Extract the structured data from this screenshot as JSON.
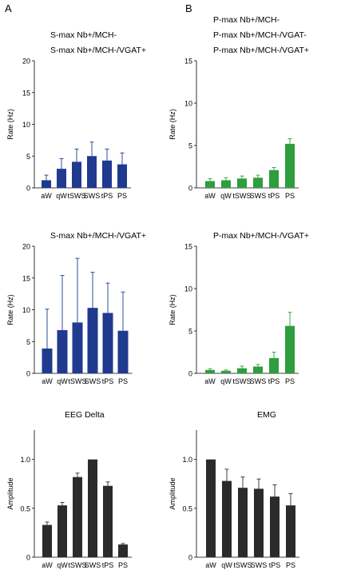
{
  "panel_labels": [
    "A",
    "B"
  ],
  "chart_data": [
    {
      "type": "bar",
      "title_lines": [
        "S-max Nb+/MCH-",
        "S-max Nb+/MCH-/VGAT+"
      ],
      "categories": [
        "aW",
        "qW",
        "tSWS",
        "SWS",
        "tPS",
        "PS"
      ],
      "values": [
        1.2,
        3.0,
        4.1,
        5.0,
        4.3,
        3.7
      ],
      "errors": [
        0.8,
        1.6,
        2.0,
        2.2,
        1.8,
        1.8
      ],
      "ylabel": "Rate (Hz)",
      "ylim": [
        0,
        20
      ],
      "yticks": [
        0,
        5,
        10,
        15,
        20
      ],
      "color": "#1f3a8f"
    },
    {
      "type": "bar",
      "title_lines": [
        "P-max Nb+/MCH-",
        "P-max Nb+/MCH-/VGAT-",
        "P-max Nb+/MCH-/VGAT+"
      ],
      "categories": [
        "aW",
        "qW",
        "tSWS",
        "SWS",
        "tPS",
        "PS"
      ],
      "values": [
        0.8,
        0.9,
        1.1,
        1.2,
        2.1,
        5.2
      ],
      "errors": [
        0.3,
        0.3,
        0.3,
        0.3,
        0.3,
        0.6
      ],
      "ylabel": "Rate (Hz)",
      "ylim": [
        0,
        15
      ],
      "yticks": [
        0,
        5,
        10,
        15
      ],
      "color": "#2e9e3e"
    },
    {
      "type": "bar",
      "title_lines": [
        "S-max Nb+/MCH-/VGAT+"
      ],
      "categories": [
        "aW",
        "qW",
        "tSWS",
        "SWS",
        "tPS",
        "PS"
      ],
      "values": [
        3.9,
        6.8,
        8.0,
        10.3,
        9.5,
        6.7
      ],
      "errors": [
        6.2,
        8.6,
        10.1,
        5.6,
        4.7,
        6.1
      ],
      "ylabel": "Rate (Hz)",
      "ylim": [
        0,
        20
      ],
      "yticks": [
        0,
        5,
        10,
        15,
        20
      ],
      "color": "#1f3a8f"
    },
    {
      "type": "bar",
      "title_lines": [
        "P-max Nb+/MCH-/VGAT+"
      ],
      "categories": [
        "aW",
        "qW",
        "tSWS",
        "SWS",
        "tPS",
        "PS"
      ],
      "values": [
        0.4,
        0.3,
        0.6,
        0.8,
        1.8,
        5.6
      ],
      "errors": [
        0.15,
        0.1,
        0.25,
        0.25,
        0.7,
        1.6
      ],
      "ylabel": "Rate (Hz)",
      "ylim": [
        0,
        15
      ],
      "yticks": [
        0,
        5,
        10,
        15
      ],
      "color": "#2e9e3e"
    },
    {
      "type": "bar",
      "title_lines": [
        "EEG Delta"
      ],
      "categories": [
        "aW",
        "qW",
        "tSWS",
        "SWS",
        "tPS",
        "PS"
      ],
      "values": [
        0.33,
        0.53,
        0.82,
        1.0,
        0.73,
        0.13
      ],
      "errors": [
        0.03,
        0.03,
        0.04,
        0.0,
        0.04,
        0.01
      ],
      "ylabel": "Amplitude",
      "ylim": [
        0,
        1.3
      ],
      "yticks": [
        0,
        0.5,
        1.0
      ],
      "ytick_labels": [
        "0",
        "0.5",
        "1.0"
      ],
      "color": "#2b2b2b"
    },
    {
      "type": "bar",
      "title_lines": [
        "EMG"
      ],
      "categories": [
        "aW",
        "qW",
        "tSWS",
        "SWS",
        "tPS",
        "PS"
      ],
      "values": [
        1.0,
        0.78,
        0.71,
        0.7,
        0.62,
        0.53
      ],
      "errors": [
        0.0,
        0.12,
        0.11,
        0.1,
        0.12,
        0.12
      ],
      "ylabel": "Amplitude",
      "ylim": [
        0,
        1.3
      ],
      "yticks": [
        0,
        0.5,
        1.0
      ],
      "ytick_labels": [
        "0",
        "0.5",
        "1.0"
      ],
      "color": "#2b2b2b"
    }
  ]
}
